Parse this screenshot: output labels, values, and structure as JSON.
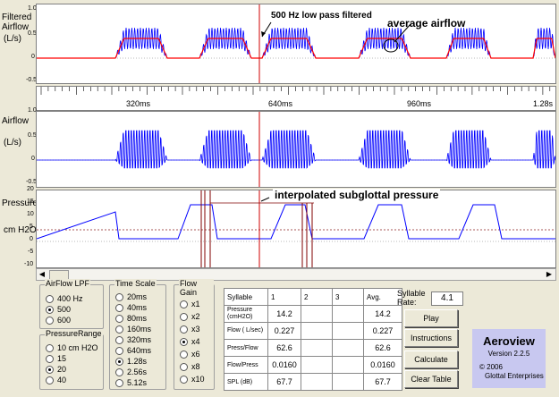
{
  "annotations": {
    "lowpass": "500 Hz low pass filtered",
    "average": "average airflow",
    "interp": "interpolated subglottal pressure"
  },
  "panels": {
    "filtered": {
      "label1": "Filtered",
      "label2": "Airflow",
      "unit": "(L/s)",
      "ticks": [
        "1.0",
        "0.5",
        "0",
        "-0.5"
      ]
    },
    "time": {
      "ticks": [
        "320ms",
        "640ms",
        "960ms",
        "1.28s"
      ]
    },
    "airflow": {
      "label1": "Airflow",
      "unit": "(L/s)",
      "ticks": [
        "1.0",
        "0.5",
        "0",
        "-0.5"
      ]
    },
    "pressure": {
      "label1": "Pressure",
      "unit": "cm H2O",
      "ticks": [
        "20",
        "15",
        "10",
        "5",
        "0",
        "-5",
        "-10"
      ]
    }
  },
  "controls": {
    "lpf": {
      "title": "AirFlow LPF",
      "options": [
        "400 Hz",
        "500",
        "600"
      ],
      "selected": 1
    },
    "prange": {
      "title": "PressureRange",
      "options": [
        "10 cm H2O",
        "15",
        "20",
        "40"
      ],
      "selected": 2
    },
    "timescale": {
      "title": "Time Scale",
      "options": [
        "20ms",
        "40ms",
        "80ms",
        "160ms",
        "320ms",
        "640ms",
        "1.28s",
        "2.56s",
        "5.12s"
      ],
      "selected": 6
    },
    "flowgain": {
      "title": "Flow Gain",
      "options": [
        "x1",
        "x2",
        "x3",
        "x4",
        "x6",
        "x8",
        "x10"
      ],
      "selected": 3
    }
  },
  "table": {
    "headers": [
      "Syllable",
      "1",
      "2",
      "3",
      "Avg."
    ],
    "rows": [
      {
        "label": "Pressure (cmH2O)",
        "v1": "14.2",
        "avg": "14.2"
      },
      {
        "label": "Flow ( L/sec)",
        "v1": "0.227",
        "avg": "0.227"
      },
      {
        "label": "Press/Flow",
        "v1": "62.6",
        "avg": "62.6"
      },
      {
        "label": "Flow/Press",
        "v1": "0.0160",
        "avg": "0.0160"
      },
      {
        "label": "SPL (dB)",
        "v1": "67.7",
        "avg": "67.7"
      }
    ]
  },
  "syllable_rate": {
    "label1": "Syllable",
    "label2": "Rate:",
    "value": "4.1"
  },
  "buttons": {
    "play": "Play",
    "instructions": "Instructions",
    "calculate": "Calculate",
    "clear": "Clear Table"
  },
  "about": {
    "name": "Aeroview",
    "version": "Version 2.2.5",
    "copyright": "© 2006",
    "company": "Glottal Enterprises"
  },
  "colors": {
    "trace": "#0000ff",
    "average": "#ff0000",
    "cursor": "#d00000",
    "marker": "#800000",
    "about_bg": "#c8c8f0"
  }
}
